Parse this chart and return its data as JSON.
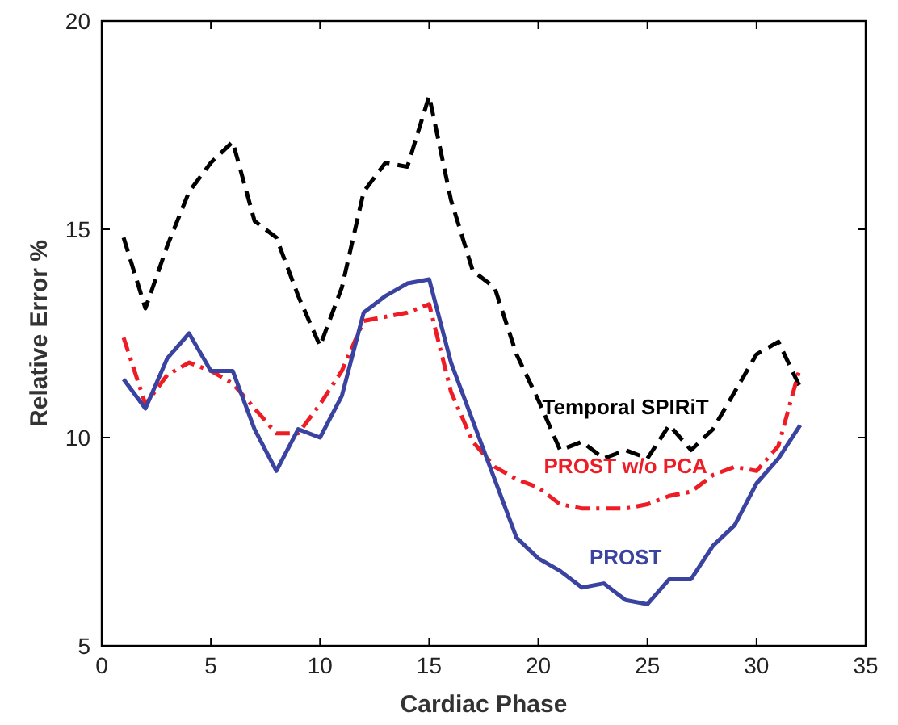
{
  "chart_data": {
    "type": "line",
    "xlabel": "Cardiac Phase",
    "ylabel": "Relative Error %",
    "x": [
      1,
      2,
      3,
      4,
      5,
      6,
      7,
      8,
      9,
      10,
      11,
      12,
      13,
      14,
      15,
      16,
      17,
      18,
      19,
      20,
      21,
      22,
      23,
      24,
      25,
      26,
      27,
      28,
      29,
      30,
      31,
      32
    ],
    "series": [
      {
        "name": "Temporal SPIRiT",
        "color": "#000000",
        "line_style": "dashed",
        "values": [
          14.8,
          13.1,
          14.6,
          15.9,
          16.6,
          17.1,
          15.2,
          14.8,
          13.4,
          12.2,
          13.6,
          15.9,
          16.6,
          16.5,
          18.2,
          15.7,
          14.0,
          13.6,
          12.0,
          10.9,
          9.7,
          9.9,
          9.5,
          9.7,
          9.5,
          10.3,
          9.7,
          10.2,
          11.1,
          12.0,
          12.3,
          11.2
        ]
      },
      {
        "name": "PROST w/o PCA",
        "color": "#ee1c24",
        "line_style": "dashdot",
        "values": [
          12.4,
          10.8,
          11.5,
          11.8,
          11.6,
          11.3,
          10.7,
          10.1,
          10.1,
          10.8,
          11.6,
          12.8,
          12.9,
          13.0,
          13.2,
          11.1,
          9.9,
          9.3,
          9.0,
          8.8,
          8.4,
          8.3,
          8.3,
          8.3,
          8.4,
          8.6,
          8.7,
          9.1,
          9.3,
          9.2,
          9.8,
          11.7
        ]
      },
      {
        "name": "PROST",
        "color": "#3a43a0",
        "line_style": "solid",
        "values": [
          11.4,
          10.7,
          11.9,
          12.5,
          11.6,
          11.6,
          10.2,
          9.2,
          10.2,
          10.0,
          11.0,
          13.0,
          13.4,
          13.7,
          13.8,
          11.8,
          10.4,
          9.0,
          7.6,
          7.1,
          6.8,
          6.4,
          6.5,
          6.1,
          6.0,
          6.6,
          6.6,
          7.4,
          7.9,
          8.9,
          9.5,
          10.3
        ]
      }
    ],
    "xlim": [
      0,
      35
    ],
    "xticks": [
      0,
      5,
      10,
      15,
      20,
      25,
      30,
      35
    ],
    "ylim": [
      5,
      20
    ],
    "yticks": [
      5,
      10,
      15,
      20
    ],
    "grid": false,
    "marker": "none"
  }
}
